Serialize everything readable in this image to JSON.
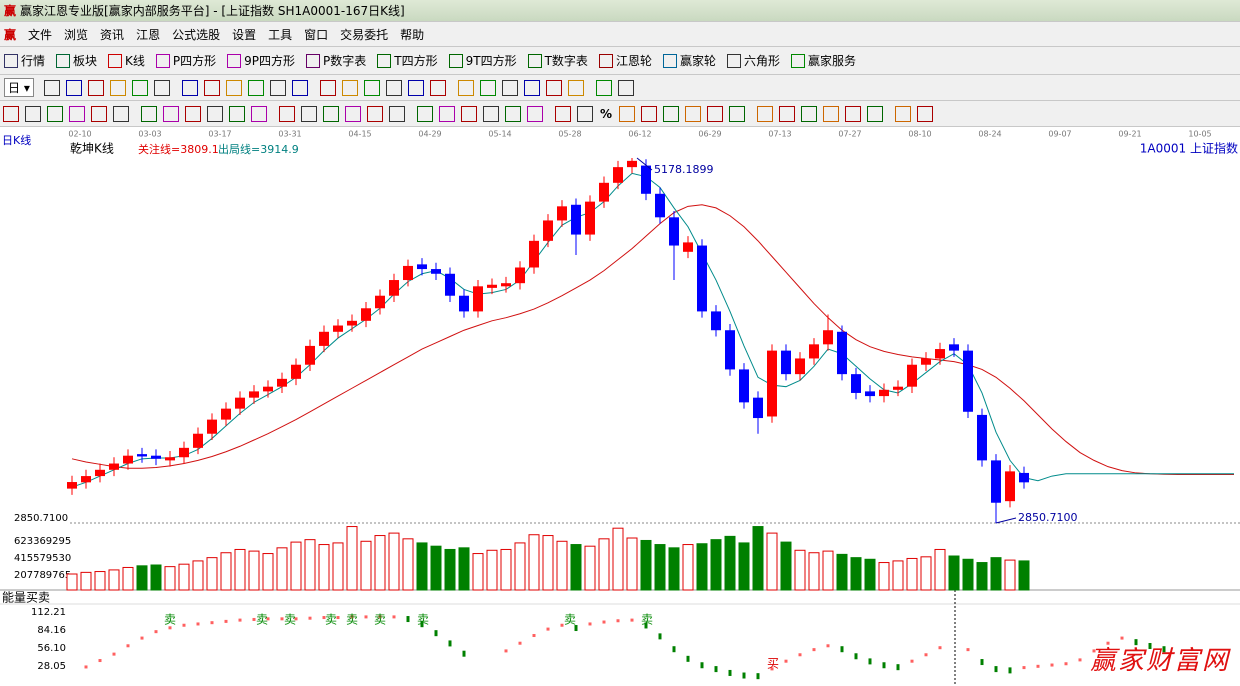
{
  "window": {
    "title": "赢家江恩专业版[赢家内部服务平台] - [上证指数  SH1A0001-167日K线]",
    "icon": "赢"
  },
  "menu": [
    "文件",
    "浏览",
    "资讯",
    "江恩",
    "公式选股",
    "设置",
    "工具",
    "窗口",
    "交易委托",
    "帮助"
  ],
  "toolbar": [
    "行情",
    "板块",
    "K线",
    "P四方形",
    "9P四方形",
    "P数字表",
    "T四方形",
    "9T四方形",
    "T数字表",
    "江恩轮",
    "赢家轮",
    "六角形",
    "赢家服务"
  ],
  "period_button": "日",
  "percent_button": "%",
  "watermark": "赢家财富网",
  "chart_data": [
    {
      "type": "candlestick",
      "title": "日K线",
      "subtitle": "乾坤K线",
      "symbol": "1A0001 上证指数",
      "attention_label": "关注线=",
      "attention_value": 3809.1,
      "exit_label": "出局线=",
      "exit_value": 3914.9,
      "date_labels": [
        "02-10",
        "03-03",
        "03-17",
        "03-31",
        "04-15",
        "04-29",
        "05-14",
        "05-28",
        "06-12",
        "06-29",
        "07-13",
        "07-27",
        "08-10",
        "08-24",
        "09-07",
        "09-21",
        "10-05"
      ],
      "up_color": "#ff0000",
      "down_color": "#0000ff",
      "open": [
        3070,
        3110,
        3150,
        3190,
        3230,
        3290,
        3280,
        3250,
        3270,
        3330,
        3420,
        3510,
        3580,
        3650,
        3690,
        3720,
        3770,
        3860,
        3980,
        4070,
        4110,
        4140,
        4220,
        4300,
        4400,
        4500,
        4470,
        4440,
        4300,
        4200,
        4350,
        4360,
        4380,
        4480,
        4650,
        4780,
        4880,
        4690,
        4900,
        5020,
        5120,
        5130,
        4950,
        4800,
        4580,
        4620,
        4200,
        4080,
        3830,
        3650,
        3530,
        3950,
        3800,
        3900,
        3990,
        4070,
        3800,
        3690,
        3660,
        3700,
        3720,
        3860,
        3900,
        3990,
        3950,
        3540,
        3250,
        2990,
        3170
      ],
      "close": [
        3112,
        3150,
        3190,
        3230,
        3280,
        3275,
        3260,
        3270,
        3330,
        3420,
        3510,
        3580,
        3650,
        3690,
        3720,
        3770,
        3860,
        3980,
        4070,
        4110,
        4140,
        4220,
        4300,
        4400,
        4490,
        4470,
        4440,
        4300,
        4200,
        4360,
        4370,
        4380,
        4480,
        4650,
        4780,
        4870,
        4690,
        4900,
        5020,
        5120,
        5160,
        4950,
        4800,
        4620,
        4640,
        4200,
        4080,
        3830,
        3620,
        3520,
        3950,
        3800,
        3900,
        3990,
        4080,
        3800,
        3680,
        3660,
        3700,
        3720,
        3860,
        3900,
        3960,
        3950,
        3560,
        3250,
        2980,
        3180,
        3110
      ],
      "high": [
        3152,
        3190,
        3230,
        3270,
        3320,
        3330,
        3320,
        3310,
        3370,
        3460,
        3550,
        3620,
        3690,
        3730,
        3760,
        3810,
        3900,
        4020,
        4110,
        4150,
        4180,
        4260,
        4340,
        4440,
        4530,
        4540,
        4510,
        4480,
        4340,
        4400,
        4410,
        4420,
        4520,
        4690,
        4820,
        4910,
        4920,
        4940,
        5060,
        5160,
        5178.1899,
        5170,
        4990,
        4840,
        4680,
        4660,
        4240,
        4120,
        3870,
        3690,
        3990,
        3990,
        3940,
        4030,
        4180,
        4110,
        3840,
        3730,
        3740,
        3760,
        3900,
        3940,
        4000,
        4030,
        3990,
        3580,
        3290,
        3220,
        3210
      ],
      "low": [
        3030,
        3070,
        3110,
        3150,
        3190,
        3235,
        3220,
        3210,
        3230,
        3290,
        3380,
        3470,
        3540,
        3610,
        3650,
        3680,
        3730,
        3820,
        3940,
        4030,
        4070,
        4100,
        4180,
        4260,
        4360,
        4430,
        4400,
        4260,
        4160,
        4160,
        4310,
        4320,
        4340,
        4440,
        4610,
        4740,
        4560,
        4650,
        4860,
        4980,
        5080,
        4910,
        4760,
        4400,
        4540,
        4160,
        4040,
        3790,
        3580,
        3420,
        3490,
        3760,
        3760,
        3860,
        3950,
        3760,
        3640,
        3620,
        3620,
        3660,
        3680,
        3820,
        3860,
        3910,
        3520,
        3210,
        2850.71,
        2950,
        3070
      ],
      "moving_averages": [
        {
          "color": "#d01010",
          "values": [
            3260,
            3240,
            3225,
            3210,
            3200,
            3200,
            3205,
            3215,
            3230,
            3250,
            3275,
            3305,
            3340,
            3380,
            3420,
            3465,
            3510,
            3560,
            3610,
            3660,
            3710,
            3760,
            3810,
            3860,
            3910,
            3960,
            4000,
            4040,
            4080,
            4110,
            4140,
            4160,
            4185,
            4215,
            4255,
            4300,
            4350,
            4400,
            4460,
            4530,
            4600,
            4680,
            4760,
            4830,
            4870,
            4880,
            4860,
            4810,
            4740,
            4650,
            4550,
            4450,
            4350,
            4250,
            4160,
            4080,
            4020,
            3975,
            3945,
            3925,
            3910,
            3900,
            3890,
            3880,
            3860,
            3830,
            3780,
            3710,
            3630,
            3540,
            3450,
            3370,
            3300,
            3250,
            3210,
            3185,
            3170,
            3165,
            3162,
            3160,
            3160,
            3160,
            3160,
            3160
          ]
        },
        {
          "color": "#008b8b",
          "values": [
            3080,
            3110,
            3150,
            3190,
            3230,
            3260,
            3265,
            3265,
            3280,
            3320,
            3390,
            3470,
            3550,
            3620,
            3670,
            3720,
            3780,
            3860,
            3950,
            4030,
            4090,
            4150,
            4220,
            4310,
            4390,
            4440,
            4460,
            4410,
            4340,
            4310,
            4320,
            4340,
            4400,
            4520,
            4640,
            4750,
            4800,
            4830,
            4900,
            5000,
            5080,
            5060,
            4990,
            4860,
            4740,
            4570,
            4400,
            4200,
            3980,
            3780,
            3730,
            3720,
            3760,
            3850,
            3960,
            3930,
            3850,
            3770,
            3700,
            3680,
            3740,
            3810,
            3880,
            3930,
            3860,
            3680,
            3430,
            3250,
            3140,
            3120,
            3150,
            3165,
            3165,
            3165,
            3165,
            3165,
            3165,
            3165,
            3165,
            3165,
            3165,
            3165,
            3165,
            3165
          ]
        }
      ],
      "ylim": [
        2838,
        5293
      ],
      "yticks": [
        {
          "value": 2850.71,
          "label": "2850.7100"
        }
      ],
      "high_annotation": 5178.1899,
      "low_annotation": {
        "value": 2850.71,
        "label": "2850.7100"
      }
    },
    {
      "type": "bar",
      "up_color": "#e00000",
      "down_color": "#008000",
      "values": [
        220000000,
        240000000,
        250000000,
        270000000,
        300000000,
        320000000,
        330000000,
        310000000,
        340000000,
        380000000,
        420000000,
        480000000,
        520000000,
        500000000,
        470000000,
        540000000,
        610000000,
        640000000,
        580000000,
        600000000,
        800000000,
        620000000,
        690000000,
        720000000,
        650000000,
        600000000,
        560000000,
        520000000,
        540000000,
        470000000,
        510000000,
        520000000,
        600000000,
        700000000,
        690000000,
        620000000,
        580000000,
        560000000,
        650000000,
        780000000,
        660000000,
        630000000,
        580000000,
        540000000,
        580000000,
        590000000,
        640000000,
        680000000,
        600000000,
        800000000,
        720000000,
        610000000,
        510000000,
        480000000,
        500000000,
        460000000,
        420000000,
        400000000,
        360000000,
        380000000,
        410000000,
        430000000,
        520000000,
        440000000,
        400000000,
        360000000,
        420000000,
        390000000,
        380000000
      ],
      "ylim": [
        0,
        819000000
      ],
      "yticks": [
        623369295,
        415579530,
        207789765
      ]
    },
    {
      "type": "line",
      "title": "能量买卖",
      "up_color": "#ff6060",
      "down_color": "#008000",
      "values": [
        null,
        25,
        35,
        45,
        58,
        70,
        80,
        86,
        90,
        92,
        94,
        96,
        98,
        99,
        100,
        100,
        100,
        101,
        102,
        102,
        103,
        103,
        103,
        103,
        102,
        94,
        80,
        64,
        48,
        null,
        null,
        50,
        62,
        74,
        84,
        90,
        88,
        92,
        95,
        97,
        98,
        92,
        75,
        55,
        40,
        30,
        24,
        18,
        14,
        13,
        22,
        34,
        44,
        52,
        58,
        55,
        44,
        36,
        30,
        27,
        34,
        44,
        55,
        null,
        52,
        35,
        24,
        22,
        24,
        26,
        28,
        30,
        36,
        50,
        62,
        70,
        66,
        60,
        55
      ],
      "ylim": [
        0,
        115
      ],
      "yticks": [
        112.21,
        84.16,
        {
          "value": 56.1,
          "label": "56.10"
        },
        28.05
      ],
      "annotations": [
        "卖",
        "卖",
        "卖",
        "卖",
        "卖",
        "卖",
        "卖",
        "卖",
        "卖",
        "买"
      ]
    }
  ]
}
